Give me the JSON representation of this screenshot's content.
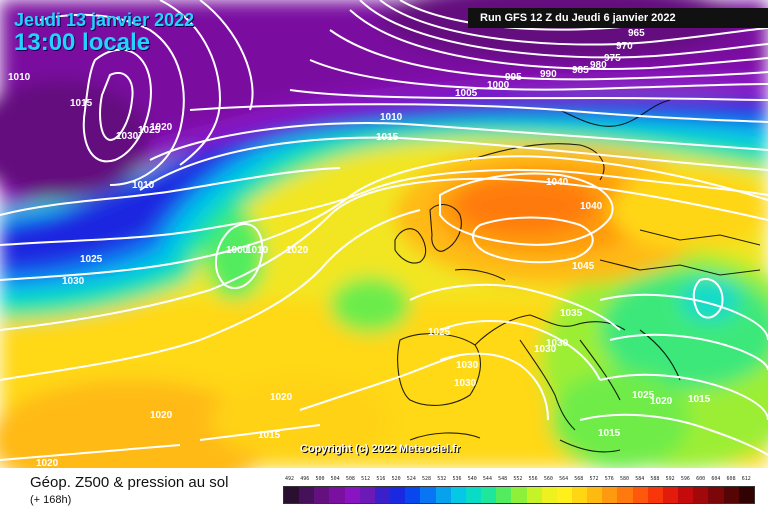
{
  "header": {
    "date": "Jeudi 13 janvier 2022",
    "time": "13:00 locale",
    "run": "Run GFS 12 Z du Jeudi 6 janvier 2022"
  },
  "copyright": "Copyright (c) 2022 Meteociel.fr",
  "footer": {
    "title": "Géop. Z500 & pression au sol",
    "subtitle": "(+ 168h)"
  },
  "legend": {
    "values": [
      "492",
      "496",
      "500",
      "504",
      "508",
      "512",
      "516",
      "520",
      "524",
      "528",
      "532",
      "536",
      "540",
      "544",
      "548",
      "552",
      "556",
      "560",
      "564",
      "568",
      "572",
      "576",
      "580",
      "584",
      "588",
      "592",
      "596",
      "600",
      "604",
      "608",
      "612"
    ],
    "colors": [
      "#2a0f30",
      "#47105a",
      "#64107e",
      "#7a10a0",
      "#8a14c2",
      "#6b1ab8",
      "#3a20c8",
      "#1a28e0",
      "#0a46f0",
      "#0876f2",
      "#07a2ee",
      "#06c8e6",
      "#08dcc6",
      "#1ee69a",
      "#52ec5e",
      "#8ef038",
      "#c6f228",
      "#eef020",
      "#fff01c",
      "#ffd614",
      "#ffba12",
      "#ff9a10",
      "#ff7a0e",
      "#ff580c",
      "#f8360a",
      "#e21c0a",
      "#c40a0a",
      "#a0080a",
      "#7c0608",
      "#560406",
      "#300202"
    ]
  },
  "isobar_labels": [
    {
      "text": "965"
    },
    {
      "text": "970"
    },
    {
      "text": "975"
    },
    {
      "text": "980"
    },
    {
      "text": "985"
    },
    {
      "text": "990"
    },
    {
      "text": "995"
    },
    {
      "text": "1000"
    },
    {
      "text": "1005"
    },
    {
      "text": "1010"
    },
    {
      "text": "1015"
    },
    {
      "text": "1010"
    },
    {
      "text": "1015"
    },
    {
      "text": "1030"
    },
    {
      "text": "1025"
    },
    {
      "text": "1020"
    },
    {
      "text": "1010"
    },
    {
      "text": "1025"
    },
    {
      "text": "1030"
    },
    {
      "text": "1000"
    },
    {
      "text": "1010"
    },
    {
      "text": "1020"
    },
    {
      "text": "1040"
    },
    {
      "text": "1040"
    },
    {
      "text": "1045"
    },
    {
      "text": "1035"
    },
    {
      "text": "1030"
    },
    {
      "text": "1030"
    },
    {
      "text": "1025"
    },
    {
      "text": "1030"
    },
    {
      "text": "1030"
    },
    {
      "text": "1020"
    },
    {
      "text": "1020"
    },
    {
      "text": "1015"
    },
    {
      "text": "1020"
    },
    {
      "text": "1025"
    },
    {
      "text": "1020"
    },
    {
      "text": "1015"
    },
    {
      "text": "1015"
    }
  ]
}
